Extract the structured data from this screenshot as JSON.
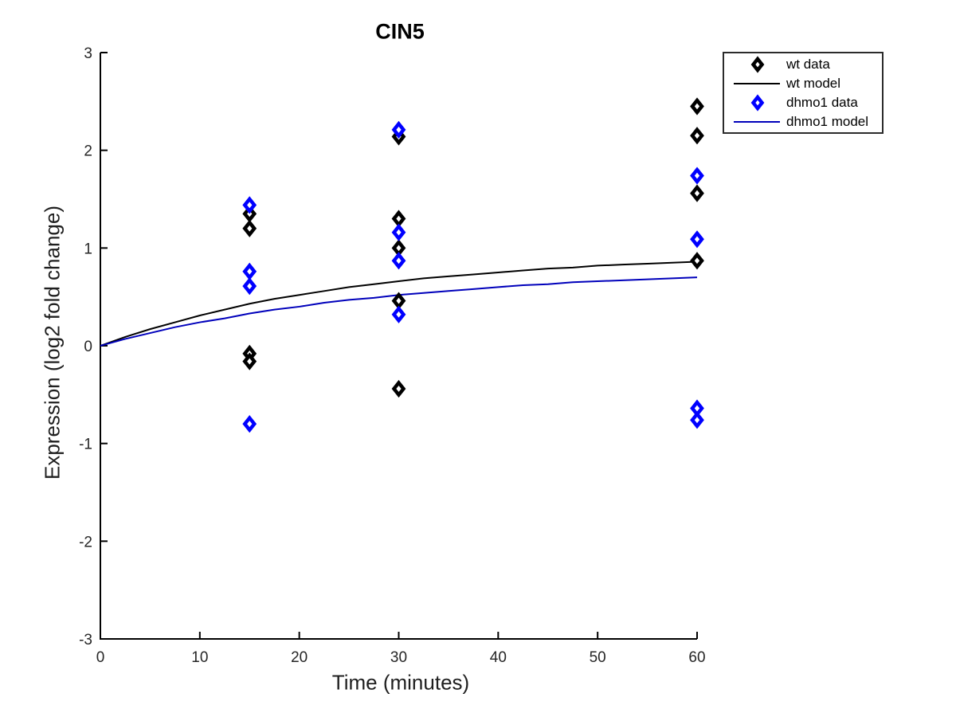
{
  "chart_data": {
    "type": "scatter",
    "title": "CIN5",
    "xlabel": "Time (minutes)",
    "ylabel": "Expression (log2 fold change)",
    "xlim": [
      0,
      60
    ],
    "ylim": [
      -3,
      3
    ],
    "xticks": [
      0,
      10,
      20,
      30,
      40,
      50,
      60
    ],
    "yticks": [
      -3,
      -2,
      -1,
      0,
      1,
      2,
      3
    ],
    "grid": false,
    "legend_position": "outside-top-right",
    "axis_color": "#000000",
    "tick_label_color": "#262626",
    "series": [
      {
        "name": "wt data",
        "type": "scatter",
        "marker": "open-diamond",
        "color": "#000000",
        "points": [
          [
            15,
            1.35
          ],
          [
            15,
            1.2
          ],
          [
            15,
            -0.08
          ],
          [
            15,
            -0.16
          ],
          [
            30,
            2.14
          ],
          [
            30,
            1.3
          ],
          [
            30,
            1.0
          ],
          [
            30,
            0.46
          ],
          [
            30,
            -0.44
          ],
          [
            60,
            2.45
          ],
          [
            60,
            2.15
          ],
          [
            60,
            1.56
          ],
          [
            60,
            0.87
          ]
        ]
      },
      {
        "name": "wt model",
        "type": "line",
        "color": "#000000",
        "x": [
          0,
          2.5,
          5,
          7.5,
          10,
          12.5,
          15,
          17.5,
          20,
          22.5,
          25,
          27.5,
          30,
          32.5,
          35,
          37.5,
          40,
          42.5,
          45,
          47.5,
          50,
          52.5,
          55,
          57.5,
          60
        ],
        "y": [
          0,
          0.09,
          0.17,
          0.24,
          0.31,
          0.37,
          0.43,
          0.48,
          0.52,
          0.56,
          0.6,
          0.63,
          0.66,
          0.69,
          0.71,
          0.73,
          0.75,
          0.77,
          0.79,
          0.8,
          0.82,
          0.83,
          0.84,
          0.85,
          0.86
        ]
      },
      {
        "name": "dhmo1 data",
        "type": "scatter",
        "marker": "open-diamond",
        "color": "#0000FF",
        "points": [
          [
            15,
            1.44
          ],
          [
            15,
            0.76
          ],
          [
            15,
            0.61
          ],
          [
            15,
            -0.8
          ],
          [
            30,
            2.21
          ],
          [
            30,
            1.16
          ],
          [
            30,
            0.87
          ],
          [
            30,
            0.32
          ],
          [
            60,
            1.74
          ],
          [
            60,
            1.09
          ],
          [
            60,
            -0.64
          ],
          [
            60,
            -0.76
          ]
        ]
      },
      {
        "name": "dhmo1 model",
        "type": "line",
        "color": "#0000BB",
        "x": [
          0,
          2.5,
          5,
          7.5,
          10,
          12.5,
          15,
          17.5,
          20,
          22.5,
          25,
          27.5,
          30,
          32.5,
          35,
          37.5,
          40,
          42.5,
          45,
          47.5,
          50,
          52.5,
          55,
          57.5,
          60
        ],
        "y": [
          0,
          0.07,
          0.13,
          0.19,
          0.24,
          0.28,
          0.33,
          0.37,
          0.4,
          0.44,
          0.47,
          0.49,
          0.52,
          0.54,
          0.56,
          0.58,
          0.6,
          0.62,
          0.63,
          0.65,
          0.66,
          0.67,
          0.68,
          0.69,
          0.7
        ]
      }
    ]
  }
}
